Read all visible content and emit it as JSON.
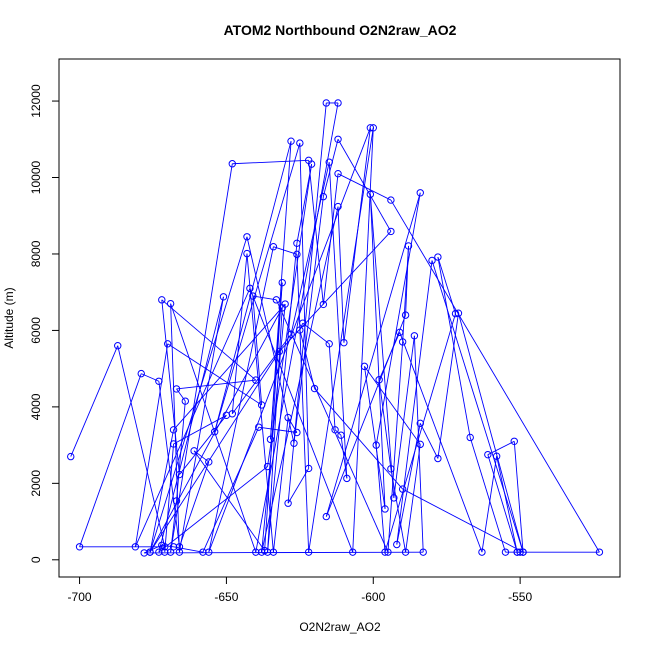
{
  "chart_data": {
    "type": "line",
    "title": "ATOM2 Northbound O2N2raw_AO2",
    "xlabel": "O2N2raw_AO2",
    "ylabel": "Altitude (m)",
    "xlim": [
      -707,
      -516
    ],
    "ylim": [
      -450,
      13100
    ],
    "x_ticks": [
      -700,
      -650,
      -600,
      -550
    ],
    "x_tick_labels": [
      "-700",
      "-650",
      "-600",
      "-550"
    ],
    "y_ticks": [
      0,
      2000,
      4000,
      6000,
      8000,
      10000,
      12000
    ],
    "y_tick_labels": [
      "0",
      "2000",
      "4000",
      "6000",
      "8000",
      "10000",
      "12000"
    ],
    "grid": false,
    "line_color": "#0000ff",
    "marker": "open-circle",
    "series": [
      {
        "x": [
          -703,
          -687,
          -671,
          -700,
          -679,
          -673,
          -666,
          -656,
          -661,
          -637,
          -631,
          -635,
          -628,
          -654,
          -625,
          -622,
          -629,
          -616,
          -612,
          -640,
          -669,
          -666,
          -651,
          -673,
          -636,
          -621,
          -626,
          -636,
          -631,
          -676,
          -643,
          -627,
          -617,
          -612,
          -594,
          -632,
          -676,
          -668,
          -630,
          -638,
          -612,
          -610,
          -601,
          -656,
          -634,
          -626,
          -622,
          -600,
          -607,
          -642,
          -681,
          -670,
          -638,
          -641,
          -633,
          -595,
          -590,
          -588,
          -589,
          -616,
          -584,
          -599,
          -596,
          -572,
          -578,
          -567,
          -555,
          -550,
          -551,
          -561,
          -552,
          -549,
          -580,
          -592,
          -584,
          -578,
          -571,
          -549,
          -590,
          -620,
          -625,
          -624,
          -615,
          -613,
          -611,
          -609,
          -615,
          -628,
          -648,
          -643,
          -634,
          -629,
          -626,
          -639,
          -658,
          -668,
          -672,
          -678,
          -583,
          -586,
          -593,
          -601,
          -596,
          -603,
          -584,
          -589,
          -594,
          -598,
          -591,
          -563,
          -558,
          -551,
          -523,
          -594,
          -612,
          -617,
          -622,
          -648,
          -669,
          -667,
          -664,
          -667,
          -640,
          -672,
          -666,
          -650,
          -668,
          -671
        ],
        "y": [
          2700,
          5600,
          340,
          340,
          4870,
          4670,
          340,
          2560,
          2850,
          240,
          7250,
          3150,
          10950,
          3350,
          10900,
          2390,
          1480,
          11950,
          11950,
          200,
          6700,
          200,
          6880,
          200,
          2440,
          10350,
          8280,
          200,
          6590,
          200,
          8450,
          3050,
          9500,
          11000,
          8590,
          5450,
          200,
          3400,
          6690,
          200,
          9240,
          5680,
          11300,
          200,
          8190,
          7990,
          200,
          11300,
          200,
          7100,
          340,
          5650,
          4050,
          6900,
          6800,
          200,
          5700,
          8210,
          6400,
          1130,
          9600,
          3000,
          200,
          6440,
          7920,
          3200,
          200,
          200,
          200,
          2750,
          3100,
          200,
          7830,
          400,
          3570,
          2650,
          6450,
          200,
          1850,
          4480,
          6010,
          6190,
          5650,
          3400,
          3260,
          2130,
          10400,
          5900,
          3820,
          8010,
          200,
          3720,
          3330,
          3470,
          200,
          340,
          380,
          180,
          200,
          5860,
          1620,
          9560,
          1330,
          5060,
          3020,
          200,
          2380,
          4710,
          5950,
          200,
          2710,
          200,
          200,
          9410,
          10100,
          6680,
          10450,
          10360,
          200,
          1540,
          4150,
          4470,
          4700,
          6800,
          2230,
          3780,
          3030,
          200
        ]
      }
    ]
  }
}
